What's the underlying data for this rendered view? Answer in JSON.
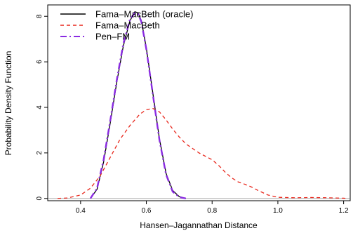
{
  "chart_data": {
    "type": "line",
    "title": "",
    "xlabel": "Hansen–Jagannathan Distance",
    "ylabel": "Probability Density Function",
    "xlim": [
      0.3,
      1.22
    ],
    "ylim": [
      -0.1,
      8.5
    ],
    "xticks": [
      0.4,
      0.6,
      0.8,
      1.0,
      1.2
    ],
    "xtick_labels": [
      "0.4",
      "0.6",
      "0.8",
      "1.0",
      "1.2"
    ],
    "yticks": [
      0,
      2,
      4,
      6,
      8
    ],
    "ytick_labels": [
      "0",
      "2",
      "4",
      "6",
      "8"
    ],
    "grid": false,
    "legend_position": "top-left",
    "baseline": 0,
    "series": [
      {
        "name": "Fama–MacBeth (oracle)",
        "color": "#000000",
        "dash": "solid",
        "x": [
          0.43,
          0.45,
          0.47,
          0.49,
          0.51,
          0.53,
          0.55,
          0.565,
          0.575,
          0.585,
          0.6,
          0.62,
          0.64,
          0.66,
          0.68,
          0.7,
          0.72
        ],
        "y": [
          0.0,
          0.4,
          1.6,
          3.3,
          5.1,
          6.7,
          7.8,
          8.2,
          8.15,
          7.8,
          6.6,
          4.6,
          2.6,
          1.1,
          0.35,
          0.08,
          0.0
        ]
      },
      {
        "name": "Fama–MacBeth",
        "color": "#e8271c",
        "dash": "dashed",
        "x": [
          0.33,
          0.36,
          0.4,
          0.43,
          0.46,
          0.49,
          0.52,
          0.55,
          0.58,
          0.6,
          0.62,
          0.64,
          0.66,
          0.68,
          0.7,
          0.72,
          0.74,
          0.76,
          0.78,
          0.8,
          0.82,
          0.84,
          0.86,
          0.88,
          0.9,
          0.92,
          0.94,
          0.97,
          1.0,
          1.05,
          1.1,
          1.15,
          1.2,
          1.21
        ],
        "y": [
          0.0,
          0.02,
          0.15,
          0.45,
          1.0,
          1.8,
          2.6,
          3.2,
          3.7,
          3.9,
          3.95,
          3.8,
          3.45,
          3.05,
          2.7,
          2.4,
          2.2,
          2.0,
          1.85,
          1.7,
          1.45,
          1.15,
          0.9,
          0.72,
          0.62,
          0.5,
          0.35,
          0.15,
          0.05,
          0.03,
          0.04,
          0.03,
          0.01,
          0.0
        ]
      },
      {
        "name": "Pen–FM",
        "color": "#8a2be2",
        "dash": "dashdot",
        "x": [
          0.43,
          0.45,
          0.47,
          0.49,
          0.51,
          0.53,
          0.55,
          0.565,
          0.575,
          0.585,
          0.6,
          0.62,
          0.64,
          0.66,
          0.68,
          0.7,
          0.72
        ],
        "y": [
          0.0,
          0.45,
          1.7,
          3.4,
          5.2,
          6.8,
          7.85,
          8.15,
          8.1,
          7.75,
          6.55,
          4.55,
          2.55,
          1.05,
          0.3,
          0.06,
          0.0
        ]
      }
    ]
  }
}
